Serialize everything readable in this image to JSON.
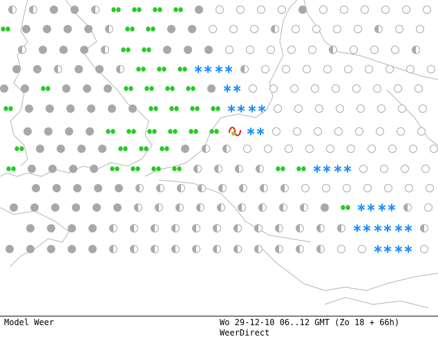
{
  "footer": {
    "model": "Model Weer",
    "period": "Wo 29-12-10 06..12 GMT (Zo 18 + 66h)",
    "brand": "WeerDirect"
  }
}
